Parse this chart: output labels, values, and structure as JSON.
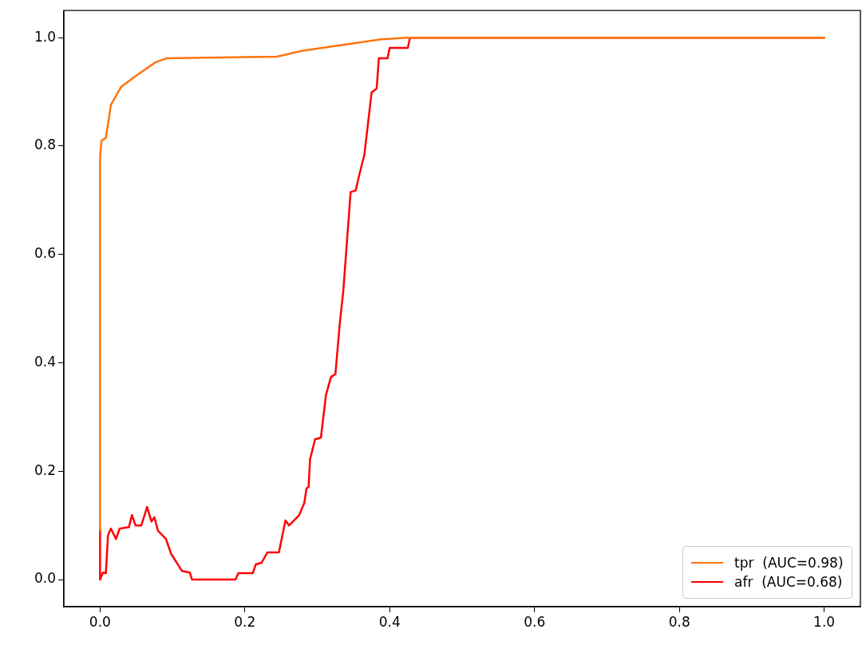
{
  "chart_data": {
    "type": "line",
    "legend": "bottom right",
    "grid": false,
    "marker": "none",
    "line_style": "solid",
    "xlim": [
      -0.05,
      1.05
    ],
    "ylim": [
      -0.05,
      1.05
    ],
    "xticks": [
      {
        "value": 0,
        "label": "0.0"
      },
      {
        "value": 0.2,
        "label": "0.2"
      },
      {
        "value": 0.4,
        "label": "0.4"
      },
      {
        "value": 0.6,
        "label": "0.6"
      },
      {
        "value": 0.8,
        "label": "0.8"
      },
      {
        "value": 1,
        "label": "1.0"
      }
    ],
    "yticks": [
      {
        "value": 0,
        "label": "0.0"
      },
      {
        "value": 0.2,
        "label": "0.2"
      },
      {
        "value": 0.4,
        "label": "0.4"
      },
      {
        "value": 0.6,
        "label": "0.6"
      },
      {
        "value": 0.8,
        "label": "0.8"
      },
      {
        "value": 1,
        "label": "1.0"
      }
    ],
    "series": [
      {
        "name": "tpr  (AUC=0.98)",
        "color": "#ff7410",
        "x": [
          0,
          0,
          0.002,
          0.008,
          0.015,
          0.029,
          0.048,
          0.076,
          0.092,
          0.244,
          0.28,
          0.388,
          0.426,
          1
        ],
        "values": [
          0.09,
          0.78,
          0.81,
          0.815,
          0.876,
          0.909,
          0.928,
          0.954,
          0.962,
          0.965,
          0.976,
          0.997,
          1,
          1
        ]
      },
      {
        "name": "afr  (AUC=0.68)",
        "color": "#ff0000",
        "x": [
          0,
          0,
          0.004,
          0.008,
          0.011,
          0.015,
          0.022,
          0.027,
          0.04,
          0.044,
          0.049,
          0.057,
          0.065,
          0.071,
          0.075,
          0.08,
          0.091,
          0.098,
          0.113,
          0.124,
          0.127,
          0.187,
          0.191,
          0.211,
          0.215,
          0.223,
          0.231,
          0.247,
          0.256,
          0.261,
          0.275,
          0.282,
          0.285,
          0.288,
          0.29,
          0.297,
          0.305,
          0.312,
          0.319,
          0.325,
          0.331,
          0.336,
          0.346,
          0.353,
          0.358,
          0.365,
          0.375,
          0.382,
          0.385,
          0.397,
          0.4,
          0.425,
          0.428,
          1
        ],
        "values": [
          0.093,
          0,
          0.013,
          0.012,
          0.082,
          0.094,
          0.075,
          0.094,
          0.097,
          0.119,
          0.1,
          0.1,
          0.134,
          0.107,
          0.115,
          0.09,
          0.075,
          0.048,
          0.016,
          0.013,
          0,
          0,
          0.012,
          0.012,
          0.028,
          0.031,
          0.05,
          0.05,
          0.109,
          0.1,
          0.119,
          0.141,
          0.168,
          0.171,
          0.222,
          0.259,
          0.262,
          0.341,
          0.374,
          0.379,
          0.472,
          0.534,
          0.715,
          0.718,
          0.747,
          0.784,
          0.899,
          0.906,
          0.962,
          0.962,
          0.981,
          0.981,
          1,
          1
        ]
      }
    ]
  }
}
